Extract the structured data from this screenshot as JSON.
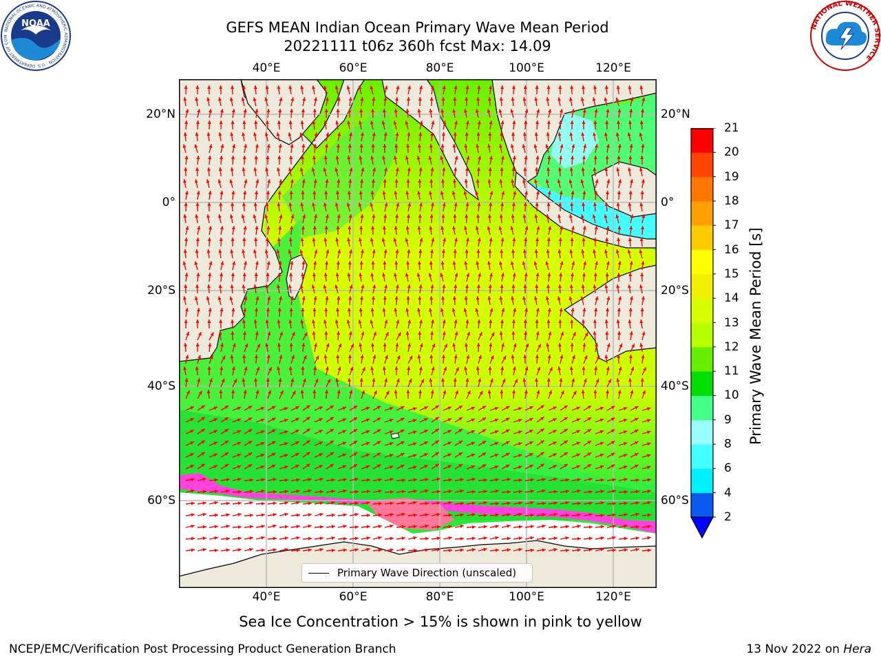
{
  "header": {
    "title_line1": "GEFS MEAN Indian Ocean Primary Wave Mean Period",
    "title_line2": "20221111 t06z 360h fcst   Max: 14.09"
  },
  "logos": {
    "noaa_text": "NOAA",
    "noaa_ring": "NATIONAL OCEANIC AND ATMOSPHERIC ADMINISTRATION · U.S. DEPARTMENT OF COMMERCE",
    "nws_ring": "NATIONAL WEATHER SERVICE"
  },
  "map": {
    "lon_labels": [
      "40°E",
      "60°E",
      "80°E",
      "100°E",
      "120°E"
    ],
    "lat_labels": [
      "20°N",
      "0°",
      "20°S",
      "40°S",
      "60°S"
    ],
    "legend_label": "Primary Wave Direction (unscaled)",
    "colors": {
      "land": "#eeeadb",
      "ice": "#ffffff",
      "arrow": "#ff0000",
      "coast": "#000000",
      "grid": "#b8b8b8"
    }
  },
  "colorbar": {
    "label": "Primary Wave Mean Period [s]",
    "ticks": [
      "2",
      "4",
      "6",
      "8",
      "9",
      "10",
      "11",
      "12",
      "13",
      "14",
      "15",
      "16",
      "17",
      "18",
      "19",
      "20",
      "21"
    ],
    "colors": [
      "#0a5af0",
      "#00f0ff",
      "#44ffff",
      "#99ffff",
      "#44ff88",
      "#00e000",
      "#66f000",
      "#b8ff00",
      "#d8ff00",
      "#f0f000",
      "#ffff00",
      "#ffcc00",
      "#ffa000",
      "#ff7700",
      "#ff4400",
      "#ff0000"
    ],
    "under_color": "#0000ff"
  },
  "annotations": {
    "sea_ice_note": "Sea Ice Concentration > 15% is shown in pink to yellow"
  },
  "footer": {
    "left": "NCEP/EMC/Verification Post Processing Product Generation Branch",
    "right_prefix": "13 Nov 2022 on ",
    "right_machine": "Hera"
  }
}
